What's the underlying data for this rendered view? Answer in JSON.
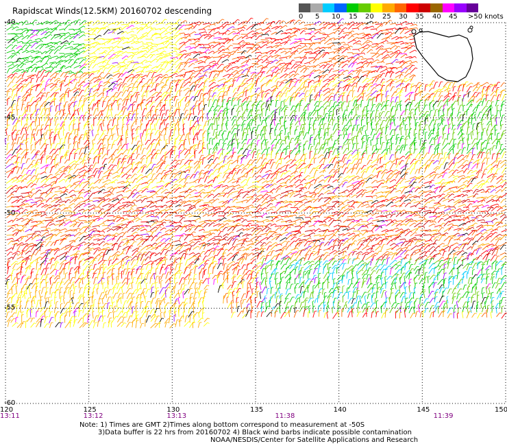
{
  "title": "Rapidscat Winds(12.5KM) 20160702 descending",
  "scale": {
    "colors": [
      "#555555",
      "#aaaaaa",
      "#00ccff",
      "#0066ff",
      "#00cc00",
      "#66cc00",
      "#ffff00",
      "#ffaa00",
      "#ff6600",
      "#ff0000",
      "#cc0000",
      "#996600",
      "#ff00ff",
      "#9900ff",
      "#660099"
    ],
    "labels": [
      "0",
      "5",
      "10",
      "15",
      "20",
      "25",
      "30",
      "35",
      "40",
      "45",
      ">50 knots"
    ]
  },
  "map": {
    "lon_range": [
      120,
      150
    ],
    "lat_range": [
      -60,
      -40
    ],
    "lon_ticks": [
      "120",
      "125",
      "130",
      "135",
      "140",
      "145",
      "150"
    ],
    "lat_ticks": [
      "-40",
      "-45",
      "-50",
      "-55",
      "-60"
    ],
    "pass_times": [
      "13:11",
      "13:12",
      "13:13",
      "11:38",
      "11:39"
    ]
  },
  "notes": {
    "line1": "Note: 1) Times are GMT 2)Times along bottom correspond to measurement at -50S",
    "line2": "3)Data buffer is 22 hrs from 20160702 4) Black wind barbs indicate possible contamination",
    "line3": "NOAA/NESDIS/Center for Satellite Applications and Research"
  }
}
